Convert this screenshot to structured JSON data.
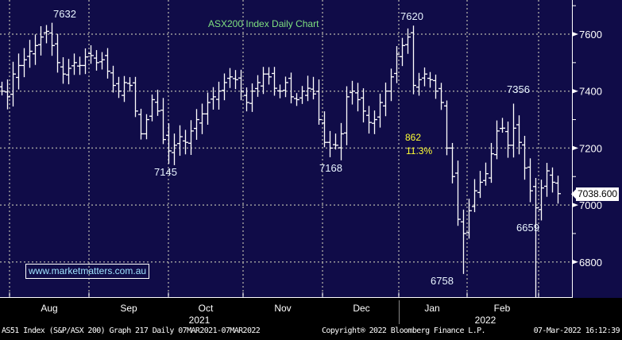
{
  "chart_data": {
    "type": "ohlc",
    "title": "ASX200 Index Daily Chart",
    "ylim": [
      6650,
      7700
    ],
    "yticks": [
      6800,
      7000,
      7200,
      7400,
      7600
    ],
    "ytick_labels": [
      "6800",
      "7000",
      "7200",
      "7400",
      "7600"
    ],
    "months": [
      "Aug",
      "Sep",
      "Oct",
      "Nov",
      "Dec",
      "Jan",
      "Feb"
    ],
    "years": [
      "2021",
      "2022"
    ],
    "last_price": "7038.600",
    "closes": [
      7400,
      7380,
      7460,
      7490,
      7510,
      7540,
      7560,
      7590,
      7610,
      7560,
      7500,
      7460,
      7480,
      7500,
      7490,
      7520,
      7525,
      7500,
      7510,
      7470,
      7420,
      7400,
      7430,
      7420,
      7330,
      7250,
      7300,
      7370,
      7330,
      7230,
      7190,
      7210,
      7240,
      7220,
      7260,
      7300,
      7320,
      7360,
      7380,
      7400,
      7430,
      7450,
      7440,
      7400,
      7360,
      7400,
      7430,
      7460,
      7450,
      7410,
      7400,
      7430,
      7380,
      7370,
      7400,
      7410,
      7390,
      7300,
      7220,
      7200,
      7210,
      7250,
      7380,
      7400,
      7370,
      7330,
      7290,
      7300,
      7360,
      7400,
      7450,
      7530,
      7560,
      7590,
      7420,
      7440,
      7460,
      7440,
      7400,
      7360,
      7200,
      7100,
      6950,
      6900,
      6980,
      7050,
      7080,
      7110,
      7180,
      7260,
      7270,
      7210,
      7270,
      7220,
      7130,
      7050,
      6990,
      7060,
      7120,
      7080,
      7040
    ],
    "annotations": [
      {
        "label": "7632",
        "bar": 8,
        "value": 7632,
        "kind": "high"
      },
      {
        "label": "7145",
        "bar": 30,
        "value": 7145,
        "kind": "low"
      },
      {
        "label": "7168",
        "bar": 59,
        "value": 7168,
        "kind": "low"
      },
      {
        "label": "7620",
        "bar": 73,
        "value": 7620,
        "kind": "high"
      },
      {
        "label": "6758",
        "bar": 83,
        "value": 6758,
        "kind": "low"
      },
      {
        "label": "7356",
        "bar": 92,
        "value": 7356,
        "kind": "high"
      },
      {
        "label": "6659",
        "bar": 96,
        "value": 6659,
        "kind": "low"
      }
    ],
    "drop_points": "862",
    "drop_percent": "11.3%"
  },
  "website": "www.marketmatters.com.au",
  "footer": {
    "left": "AS51 Index (S&P/ASX 200) Graph 217  Daily 07MAR2021-07MAR2022",
    "center": "Copyright® 2022 Bloomberg Finance L.P.",
    "right": "07-Mar-2022 16:12:39"
  },
  "colors": {
    "background": "#100c48",
    "title": "#7fe07f",
    "annotation": "#ffff33",
    "link": "#a0e4ff"
  }
}
